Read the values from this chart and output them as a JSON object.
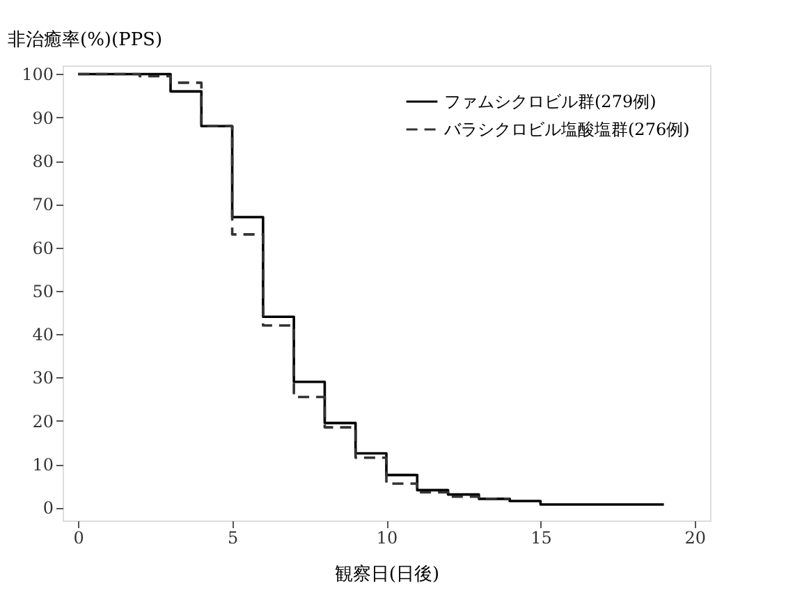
{
  "chart_data": {
    "type": "step",
    "ylabel": "非治癒率(%)(PPS)",
    "xlabel": "観察日(日後)",
    "xlim": [
      -0.5,
      20.5
    ],
    "xticks": [
      0,
      5,
      10,
      15,
      20
    ],
    "ylim": [
      -3,
      102
    ],
    "yticks": [
      0,
      10,
      20,
      30,
      40,
      50,
      60,
      70,
      80,
      90,
      100
    ],
    "grid": false,
    "legend": "top right",
    "marker": "none",
    "series": [
      {
        "name": "ファムシクロビル群(279例)",
        "color": "#000000",
        "line_style": "solid",
        "x": [
          0,
          3,
          4,
          5,
          6,
          7,
          8,
          9,
          10,
          11,
          12,
          13,
          14,
          15,
          19
        ],
        "values": [
          100,
          96,
          88,
          67,
          44,
          29,
          19.5,
          12.5,
          7.5,
          4,
          3,
          2,
          1.5,
          0.7,
          0.7
        ]
      },
      {
        "name": "バラシクロビル塩酸塩群(276例)",
        "color": "#333333",
        "line_style": "dashed",
        "x": [
          0,
          2,
          3,
          4,
          5,
          6,
          7,
          8,
          9,
          10,
          11,
          12,
          13,
          14
        ],
        "values": [
          100,
          99.5,
          98,
          88,
          63,
          42,
          25.5,
          18.5,
          11.5,
          5.5,
          3.5,
          2.5,
          2,
          2
        ]
      }
    ]
  }
}
